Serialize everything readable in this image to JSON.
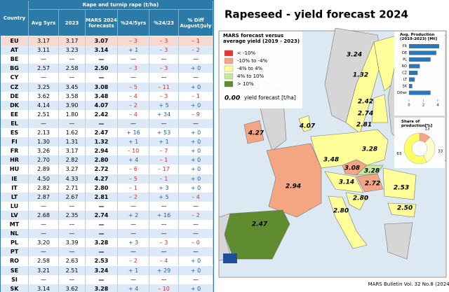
{
  "table": {
    "header": {
      "group": "Rape and turnip rape (t/ha)",
      "columns": [
        "Country",
        "Avg 5yrs",
        "2023",
        "MARS 2024 forecasts",
        "%24/5yrs",
        "%24/23",
        "% Diff August/July"
      ]
    },
    "rows": [
      [
        "EU",
        "3.17",
        "3.17",
        "3.07",
        "– 3",
        "– 3",
        "– 1"
      ],
      [
        "AT",
        "3.11",
        "3.23",
        "3.14",
        "+ 1",
        "– 3",
        "– 2"
      ],
      [
        "BE",
        "—",
        "—",
        "—",
        "—",
        "—",
        "—"
      ],
      [
        "BG",
        "2.57",
        "2.58",
        "2.50",
        "– 3",
        "– 3",
        "+ 0"
      ],
      [
        "CY",
        "—",
        "—",
        "—",
        "—",
        "—",
        "—"
      ],
      [
        "CZ",
        "3.25",
        "3.45",
        "3.08",
        "– 5",
        "– 11",
        "+ 0"
      ],
      [
        "DE",
        "3.62",
        "3.58",
        "3.48",
        "– 4",
        "– 3",
        "– 1"
      ],
      [
        "DK",
        "4.14",
        "3.90",
        "4.07",
        "– 2",
        "+ 5",
        "+ 0"
      ],
      [
        "EE",
        "2.51",
        "1.80",
        "2.42",
        "– 4",
        "+ 34",
        "– 9"
      ],
      [
        "EL",
        "—",
        "—",
        "—",
        "—",
        "—",
        "—"
      ],
      [
        "ES",
        "2.13",
        "1.62",
        "2.47",
        "+ 16",
        "+ 53",
        "+ 0"
      ],
      [
        "FI",
        "1.30",
        "1.31",
        "1.32",
        "+ 1",
        "+ 1",
        "+ 0"
      ],
      [
        "FR",
        "3.26",
        "3.17",
        "2.94",
        "– 10",
        "– 7",
        "+ 0"
      ],
      [
        "HR",
        "2.70",
        "2.82",
        "2.80",
        "+ 4",
        "– 1",
        "+ 0"
      ],
      [
        "HU",
        "2.89",
        "3.27",
        "2.72",
        "– 6",
        "– 17",
        "+ 0"
      ],
      [
        "IE",
        "4.50",
        "4.33",
        "4.27",
        "– 5",
        "– 1",
        "+ 0"
      ],
      [
        "IT",
        "2.82",
        "2.71",
        "2.80",
        "– 1",
        "+ 3",
        "+ 0"
      ],
      [
        "LT",
        "2.87",
        "2.67",
        "2.81",
        "– 2",
        "+ 5",
        "– 4"
      ],
      [
        "LU",
        "—",
        "—",
        "—",
        "—",
        "—",
        "—"
      ],
      [
        "LV",
        "2.68",
        "2.35",
        "2.74",
        "+ 2",
        "+ 16",
        "– 2"
      ],
      [
        "MT",
        "—",
        "—",
        "—",
        "—",
        "—",
        "—"
      ],
      [
        "NL",
        "—",
        "—",
        "—",
        "—",
        "—",
        "—"
      ],
      [
        "PL",
        "3.20",
        "3.39",
        "3.28",
        "+ 3",
        "– 3",
        "– 0"
      ],
      [
        "PT",
        "—",
        "—",
        "—",
        "—",
        "—",
        "—"
      ],
      [
        "RO",
        "2.58",
        "2.63",
        "2.53",
        "– 2",
        "– 4",
        "+ 0"
      ],
      [
        "SE",
        "3.21",
        "2.51",
        "3.24",
        "+ 1",
        "+ 29",
        "+ 0"
      ],
      [
        "SI",
        "—",
        "—",
        "—",
        "—",
        "—",
        "—"
      ],
      [
        "SK",
        "3.14",
        "3.62",
        "3.28",
        "+ 4",
        "– 10",
        "+ 0"
      ]
    ]
  },
  "map": {
    "title": "Rapeseed - yield forecast 2024",
    "legend_title": "MARS forecast versus average yield (2019 - 2023)",
    "legend": [
      {
        "label": "< -10%",
        "color": "#e8352b"
      },
      {
        "label": "-10% to -4%",
        "color": "#f4a582"
      },
      {
        "label": "-4% to 4%",
        "color": "#ffff99"
      },
      {
        "label": "4% to 10%",
        "color": "#c6eb98"
      },
      {
        "label": "> 10%",
        "color": "#5e8c2e"
      }
    ],
    "sample_value": "0.00",
    "sample_caption": "yield forecast [t/ha]",
    "labels": [
      "3.24",
      "1.32",
      "2.42",
      "2.74",
      "2.81",
      "4.07",
      "4.27",
      "3.28",
      "3.48",
      "3.08",
      "3.28",
      "3.14",
      "2.72",
      "2.94",
      "2.53",
      "2.80",
      "2.50",
      "2.80",
      "2.47"
    ],
    "footer": "MARS Bulletin Vol. 32 No.8 (2024)"
  },
  "chart_data": [
    {
      "type": "bar",
      "orientation": "horizontal",
      "title": "Avg. Production (2019-2023) [Mt]",
      "categories": [
        "FR",
        "DE",
        "PL",
        "RO",
        "CZ",
        "LT",
        "SK",
        "Other"
      ],
      "values": [
        4.2,
        3.8,
        3.0,
        1.5,
        1.2,
        0.8,
        0.45,
        3.0
      ],
      "color": "#2e75b6",
      "xlim": [
        0,
        4.4
      ],
      "xticks": [
        0,
        2,
        4
      ]
    },
    {
      "type": "pie",
      "title": "Share of production[%]",
      "values": [
        13,
        33,
        63
      ],
      "colors": [
        "#f4a582",
        "#ffffcc",
        "#ffff66"
      ],
      "donut": true
    }
  ]
}
